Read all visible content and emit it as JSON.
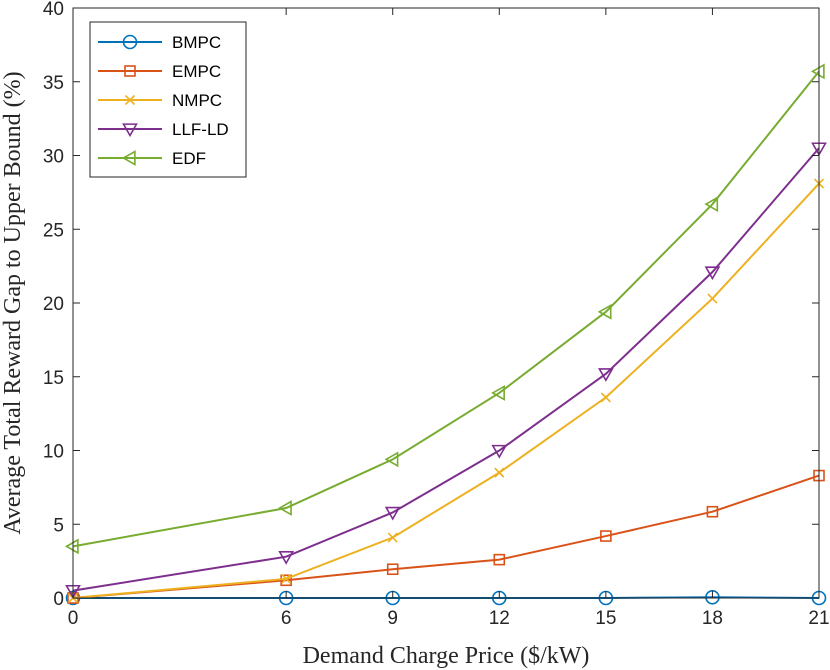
{
  "chart_data": {
    "type": "line",
    "title": "",
    "xlabel": "Demand Charge Price ($/kW)",
    "ylabel": "Average Total Reward Gap to Upper Bound (%)",
    "x": [
      0,
      6,
      9,
      12,
      15,
      18,
      21
    ],
    "xlim": [
      0,
      21
    ],
    "ylim": [
      0,
      40
    ],
    "xticks": [
      "0",
      "6",
      "9",
      "12",
      "15",
      "18",
      "21"
    ],
    "yticks": [
      "0",
      "5",
      "10",
      "15",
      "20",
      "25",
      "30",
      "35",
      "40"
    ],
    "grid": false,
    "legend_position": "top-left",
    "series": [
      {
        "name": "BMPC",
        "color": "#0072BD",
        "marker": "circle",
        "values": [
          0.0,
          0.0,
          0.0,
          0.0,
          0.0,
          0.05,
          0.0
        ]
      },
      {
        "name": "EMPC",
        "color": "#D95319",
        "marker": "square",
        "values": [
          0.0,
          1.2,
          1.95,
          2.6,
          4.2,
          5.85,
          8.3
        ]
      },
      {
        "name": "NMPC",
        "color": "#EDB120",
        "marker": "x",
        "values": [
          0.0,
          1.3,
          4.1,
          8.5,
          13.6,
          20.3,
          28.1
        ]
      },
      {
        "name": "LLF-LD",
        "color": "#7E2F8E",
        "marker": "triangle-down",
        "values": [
          0.5,
          2.8,
          5.8,
          10.0,
          15.2,
          22.1,
          30.5
        ]
      },
      {
        "name": "EDF",
        "color": "#77AC30",
        "marker": "triangle-left",
        "values": [
          3.5,
          6.1,
          9.4,
          13.9,
          19.4,
          26.7,
          35.7
        ]
      }
    ]
  }
}
